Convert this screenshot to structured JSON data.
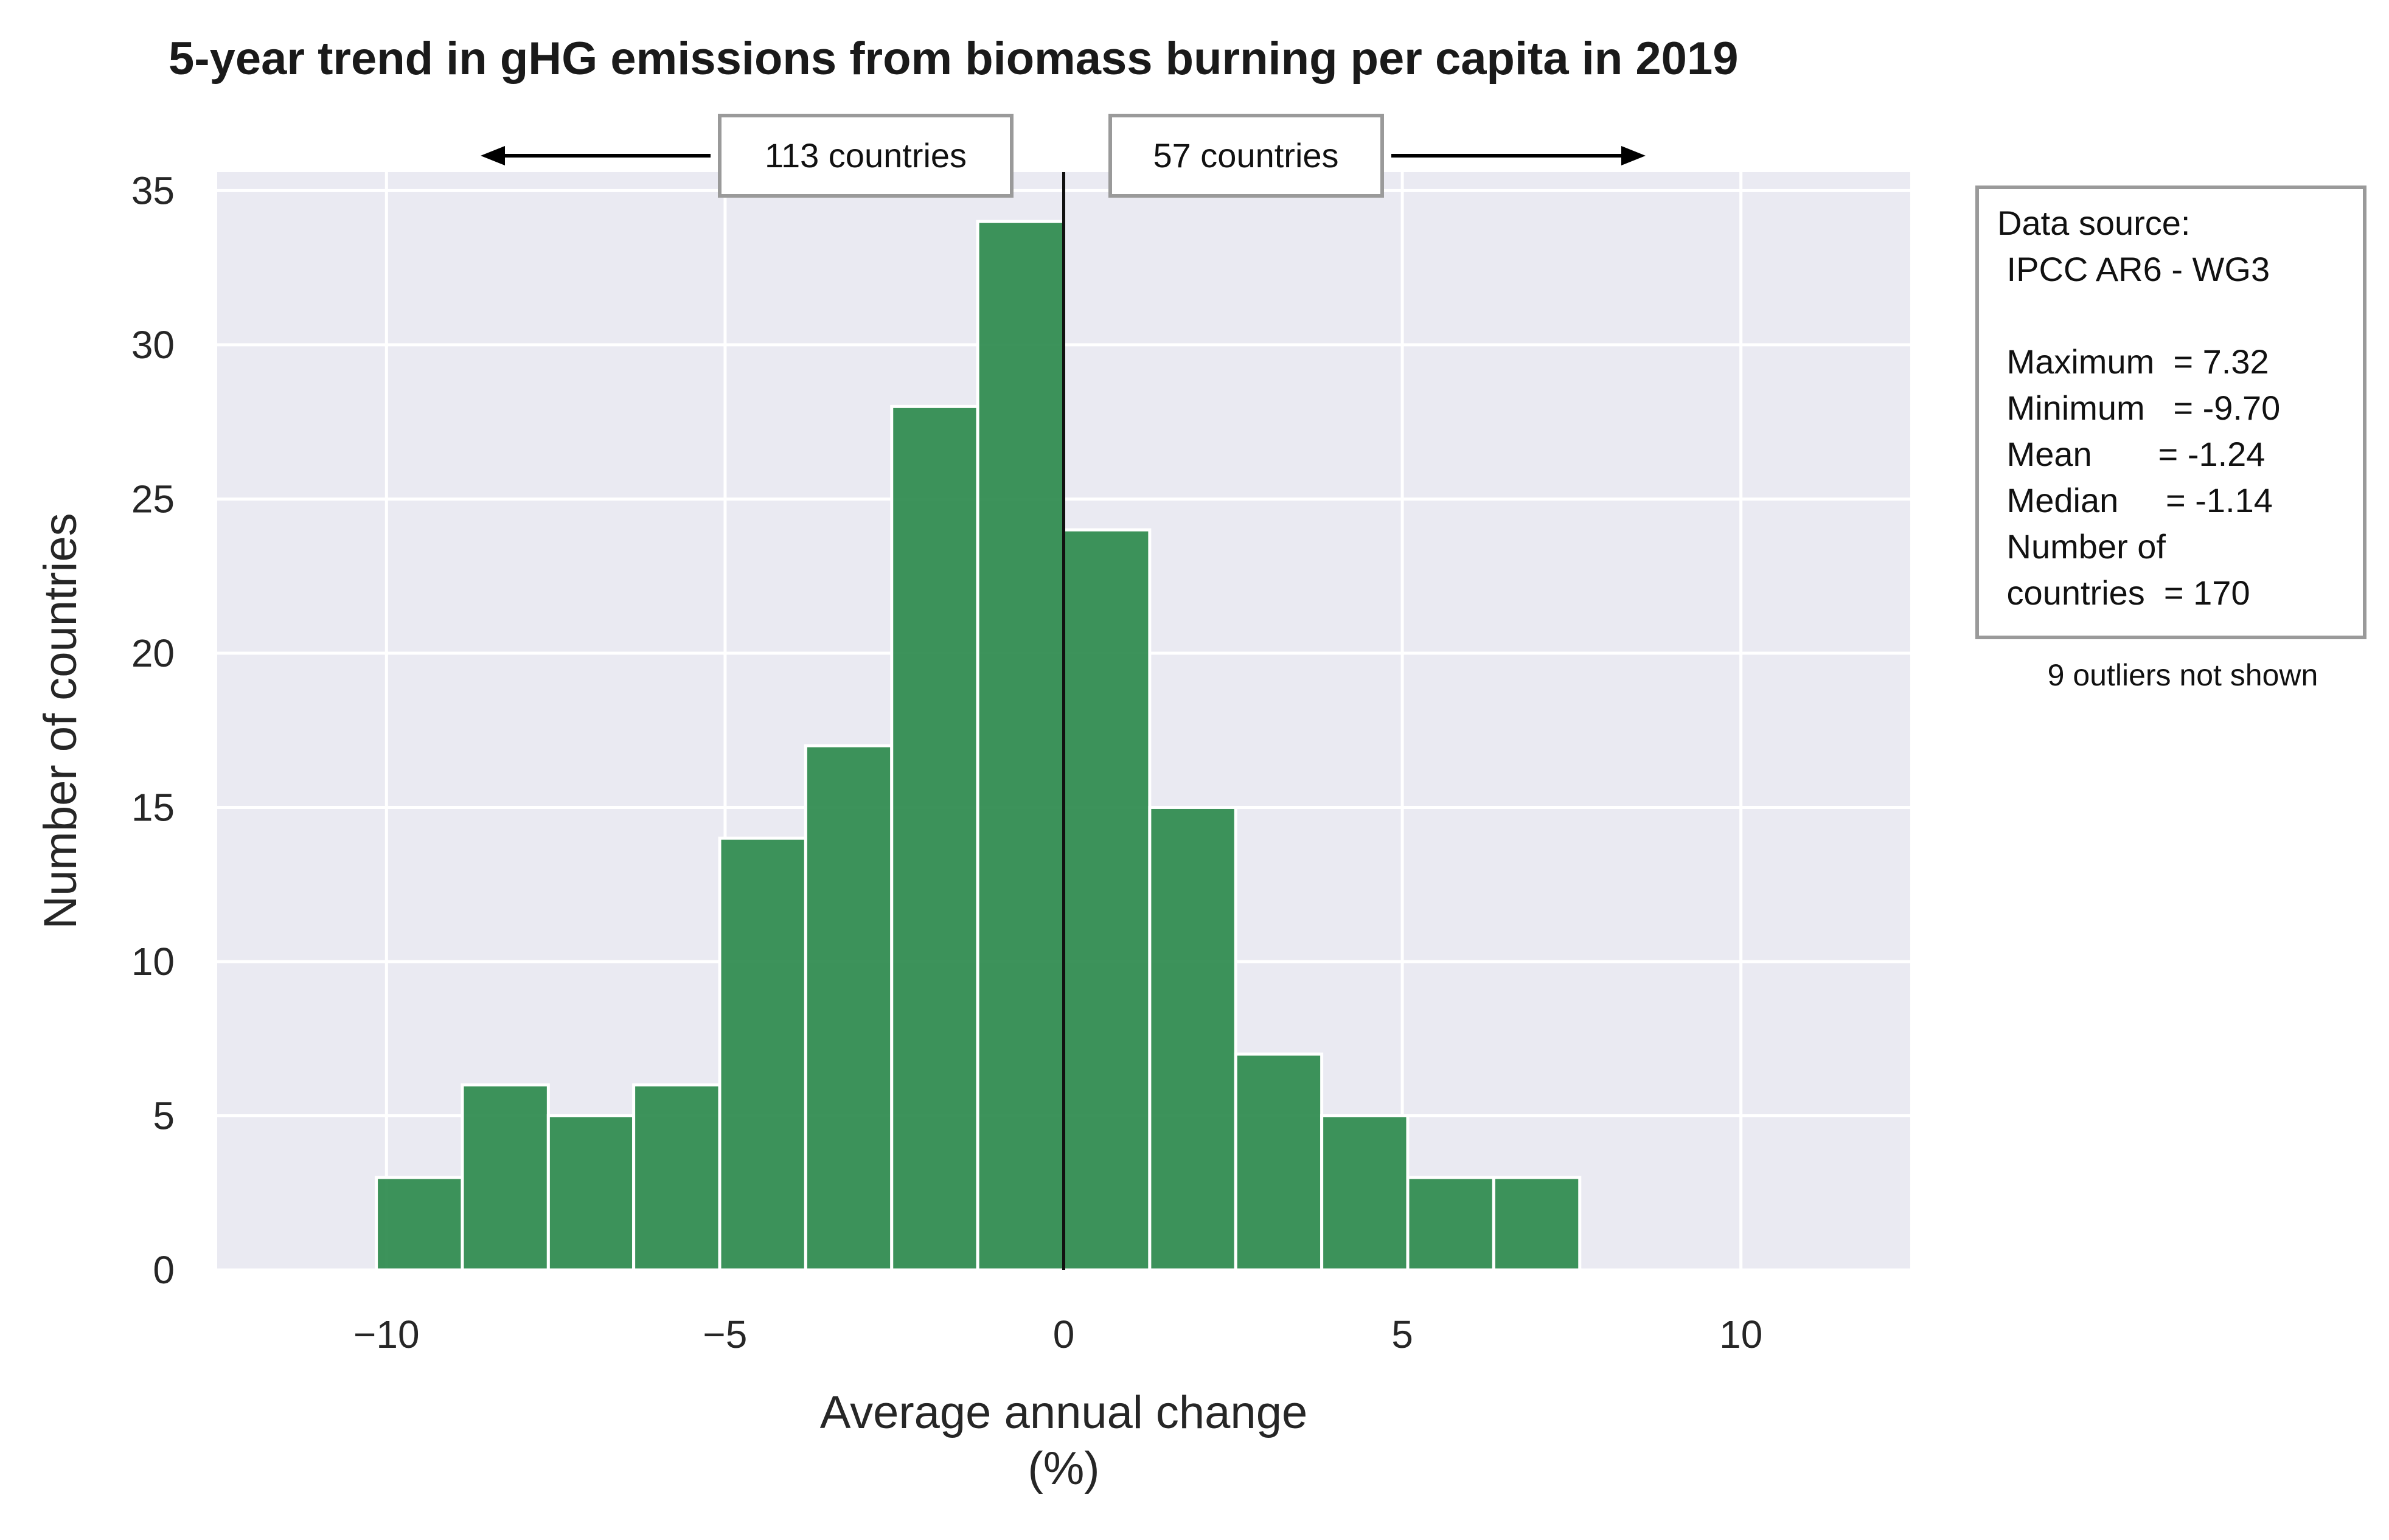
{
  "chart_data": {
    "type": "bar",
    "title": "5-year trend in gHG emissions from biomass burning per capita in 2019",
    "xlabel_line1": "Average annual change",
    "xlabel_line2": "(%)",
    "ylabel": "Number of countries",
    "xlim": [
      -12.5,
      12.5
    ],
    "ylim": [
      0,
      35.6
    ],
    "xticks": [
      -10,
      -5,
      0,
      5,
      10
    ],
    "xtick_labels": [
      "−10",
      "−5",
      "0",
      "5",
      "10"
    ],
    "yticks": [
      0,
      5,
      10,
      15,
      20,
      25,
      30,
      35
    ],
    "ytick_labels": [
      "0",
      "5",
      "10",
      "15",
      "20",
      "25",
      "30",
      "35"
    ],
    "grid": true,
    "bin_edges": [
      -10.15,
      -8.88,
      -7.61,
      -6.35,
      -5.08,
      -3.81,
      -2.54,
      -1.27,
      0.0,
      1.27,
      2.54,
      3.81,
      5.08,
      6.35,
      7.62
    ],
    "counts": [
      3,
      6,
      5,
      6,
      14,
      17,
      28,
      34,
      24,
      15,
      7,
      5,
      3,
      3
    ],
    "bar_color": "#2e8b4f",
    "bar_edge_color": "#ffffff",
    "background_color": "#eaeaf2",
    "grid_color": "#ffffff",
    "reference_line_x": 0,
    "reference_line_color": "#111111",
    "left_callout": "113 countries",
    "right_callout": "57 countries",
    "info_box": {
      "lines": [
        "Data source:",
        " IPCC AR6 - WG3",
        "",
        " Maximum  = 7.32",
        " Minimum   = -9.70",
        " Mean       = -1.24",
        " Median     = -1.14",
        " Number of",
        " countries  = 170"
      ]
    },
    "note": "9 outliers not shown"
  }
}
